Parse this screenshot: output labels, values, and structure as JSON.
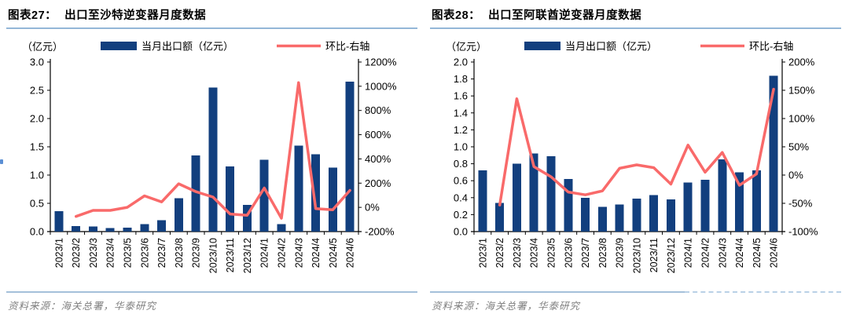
{
  "colors": {
    "bar": "#123f7e",
    "line": "#f96a6a",
    "title_rule": "#94b7d8",
    "footer_rule": "#a4c0da",
    "source_text": "#808080"
  },
  "chart_data": [
    {
      "type": "bar",
      "figure_label": "图表27：",
      "title": "出口至沙特逆变器月度数据",
      "unit_label": "（亿元）",
      "legend": [
        "当月出口额（亿元）",
        "环比-右轴"
      ],
      "legend_position": "top",
      "grid": false,
      "categories": [
        "2023/1",
        "2023/2",
        "2023/3",
        "2023/4",
        "2023/5",
        "2023/6",
        "2023/7",
        "2023/8",
        "2023/9",
        "2023/10",
        "2023/11",
        "2023/12",
        "2024/1",
        "2024/2",
        "2024/3",
        "2024/4",
        "2024/5",
        "2024/6"
      ],
      "series": [
        {
          "name": "当月出口额（亿元）",
          "type": "bar",
          "axis": "left",
          "color": "#123f7e",
          "values": [
            0.36,
            0.1,
            0.09,
            0.06,
            0.07,
            0.13,
            0.2,
            0.59,
            1.35,
            2.55,
            1.15,
            0.47,
            1.27,
            0.13,
            1.52,
            1.37,
            1.13,
            2.65
          ]
        },
        {
          "name": "环比-右轴",
          "type": "line",
          "axis": "right",
          "color": "#f96a6a",
          "values": [
            null,
            -75,
            -25,
            -25,
            0,
            95,
            45,
            195,
            130,
            85,
            -55,
            -65,
            160,
            -90,
            1030,
            -10,
            -20,
            140
          ]
        }
      ],
      "left_axis": {
        "min": 0,
        "max": 3.0,
        "step": 0.5,
        "decimals": 1
      },
      "right_axis": {
        "min": -200,
        "max": 1200,
        "step": 200,
        "suffix": "%"
      },
      "source": "资料来源：海关总署，华泰研究"
    },
    {
      "type": "bar",
      "figure_label": "图表28：",
      "title": "出口至阿联酋逆变器月度数据",
      "unit_label": "（亿元）",
      "legend": [
        "当月出口额（亿元）",
        "环比-右轴"
      ],
      "legend_position": "top",
      "grid": false,
      "categories": [
        "2023/1",
        "2023/2",
        "2023/3",
        "2023/4",
        "2023/5",
        "2023/6",
        "2023/7",
        "2023/8",
        "2023/9",
        "2023/10",
        "2023/11",
        "2023/12",
        "2024/1",
        "2024/2",
        "2024/3",
        "2024/4",
        "2024/5",
        "2024/6"
      ],
      "series": [
        {
          "name": "当月出口额（亿元）",
          "type": "bar",
          "axis": "left",
          "color": "#123f7e",
          "values": [
            0.72,
            0.34,
            0.8,
            0.92,
            0.89,
            0.62,
            0.4,
            0.29,
            0.32,
            0.39,
            0.43,
            0.38,
            0.58,
            0.61,
            0.85,
            0.7,
            0.72,
            1.84
          ]
        },
        {
          "name": "环比-右轴",
          "type": "line",
          "axis": "right",
          "color": "#f96a6a",
          "values": [
            null,
            -53,
            135,
            15,
            -3,
            -30,
            -35,
            -28,
            12,
            18,
            13,
            -16,
            53,
            5,
            40,
            -18,
            2,
            152
          ]
        }
      ],
      "left_axis": {
        "min": 0,
        "max": 2.0,
        "step": 0.2,
        "decimals": 1
      },
      "right_axis": {
        "min": -100,
        "max": 200,
        "step": 50,
        "suffix": "%"
      },
      "source": "资料来源：海关总署，华泰研究"
    }
  ]
}
